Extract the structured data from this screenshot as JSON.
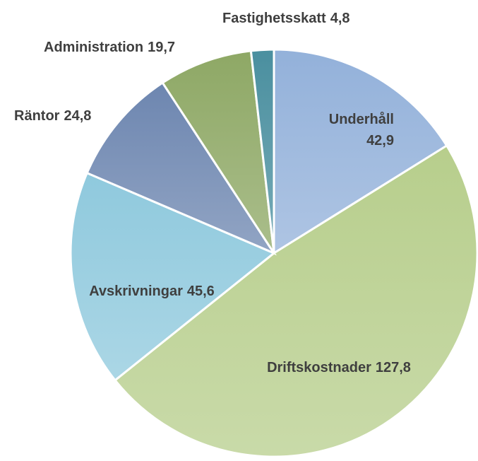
{
  "chart_data": {
    "type": "pie",
    "categories": [
      "Underhåll",
      "Driftskostnader",
      "Avskrivningar",
      "Räntor",
      "Administration",
      "Fastighetsskatt"
    ],
    "values": [
      42.9,
      127.8,
      45.6,
      24.8,
      19.7,
      4.8
    ],
    "value_labels": [
      "42,9",
      "127,8",
      "45,6",
      "24,8",
      "19,7",
      "4,8"
    ],
    "colors": [
      "#93b1da",
      "#b7ce8c",
      "#8fc9dd",
      "#6d86b0",
      "#8ea865",
      "#4a8f9f"
    ]
  }
}
